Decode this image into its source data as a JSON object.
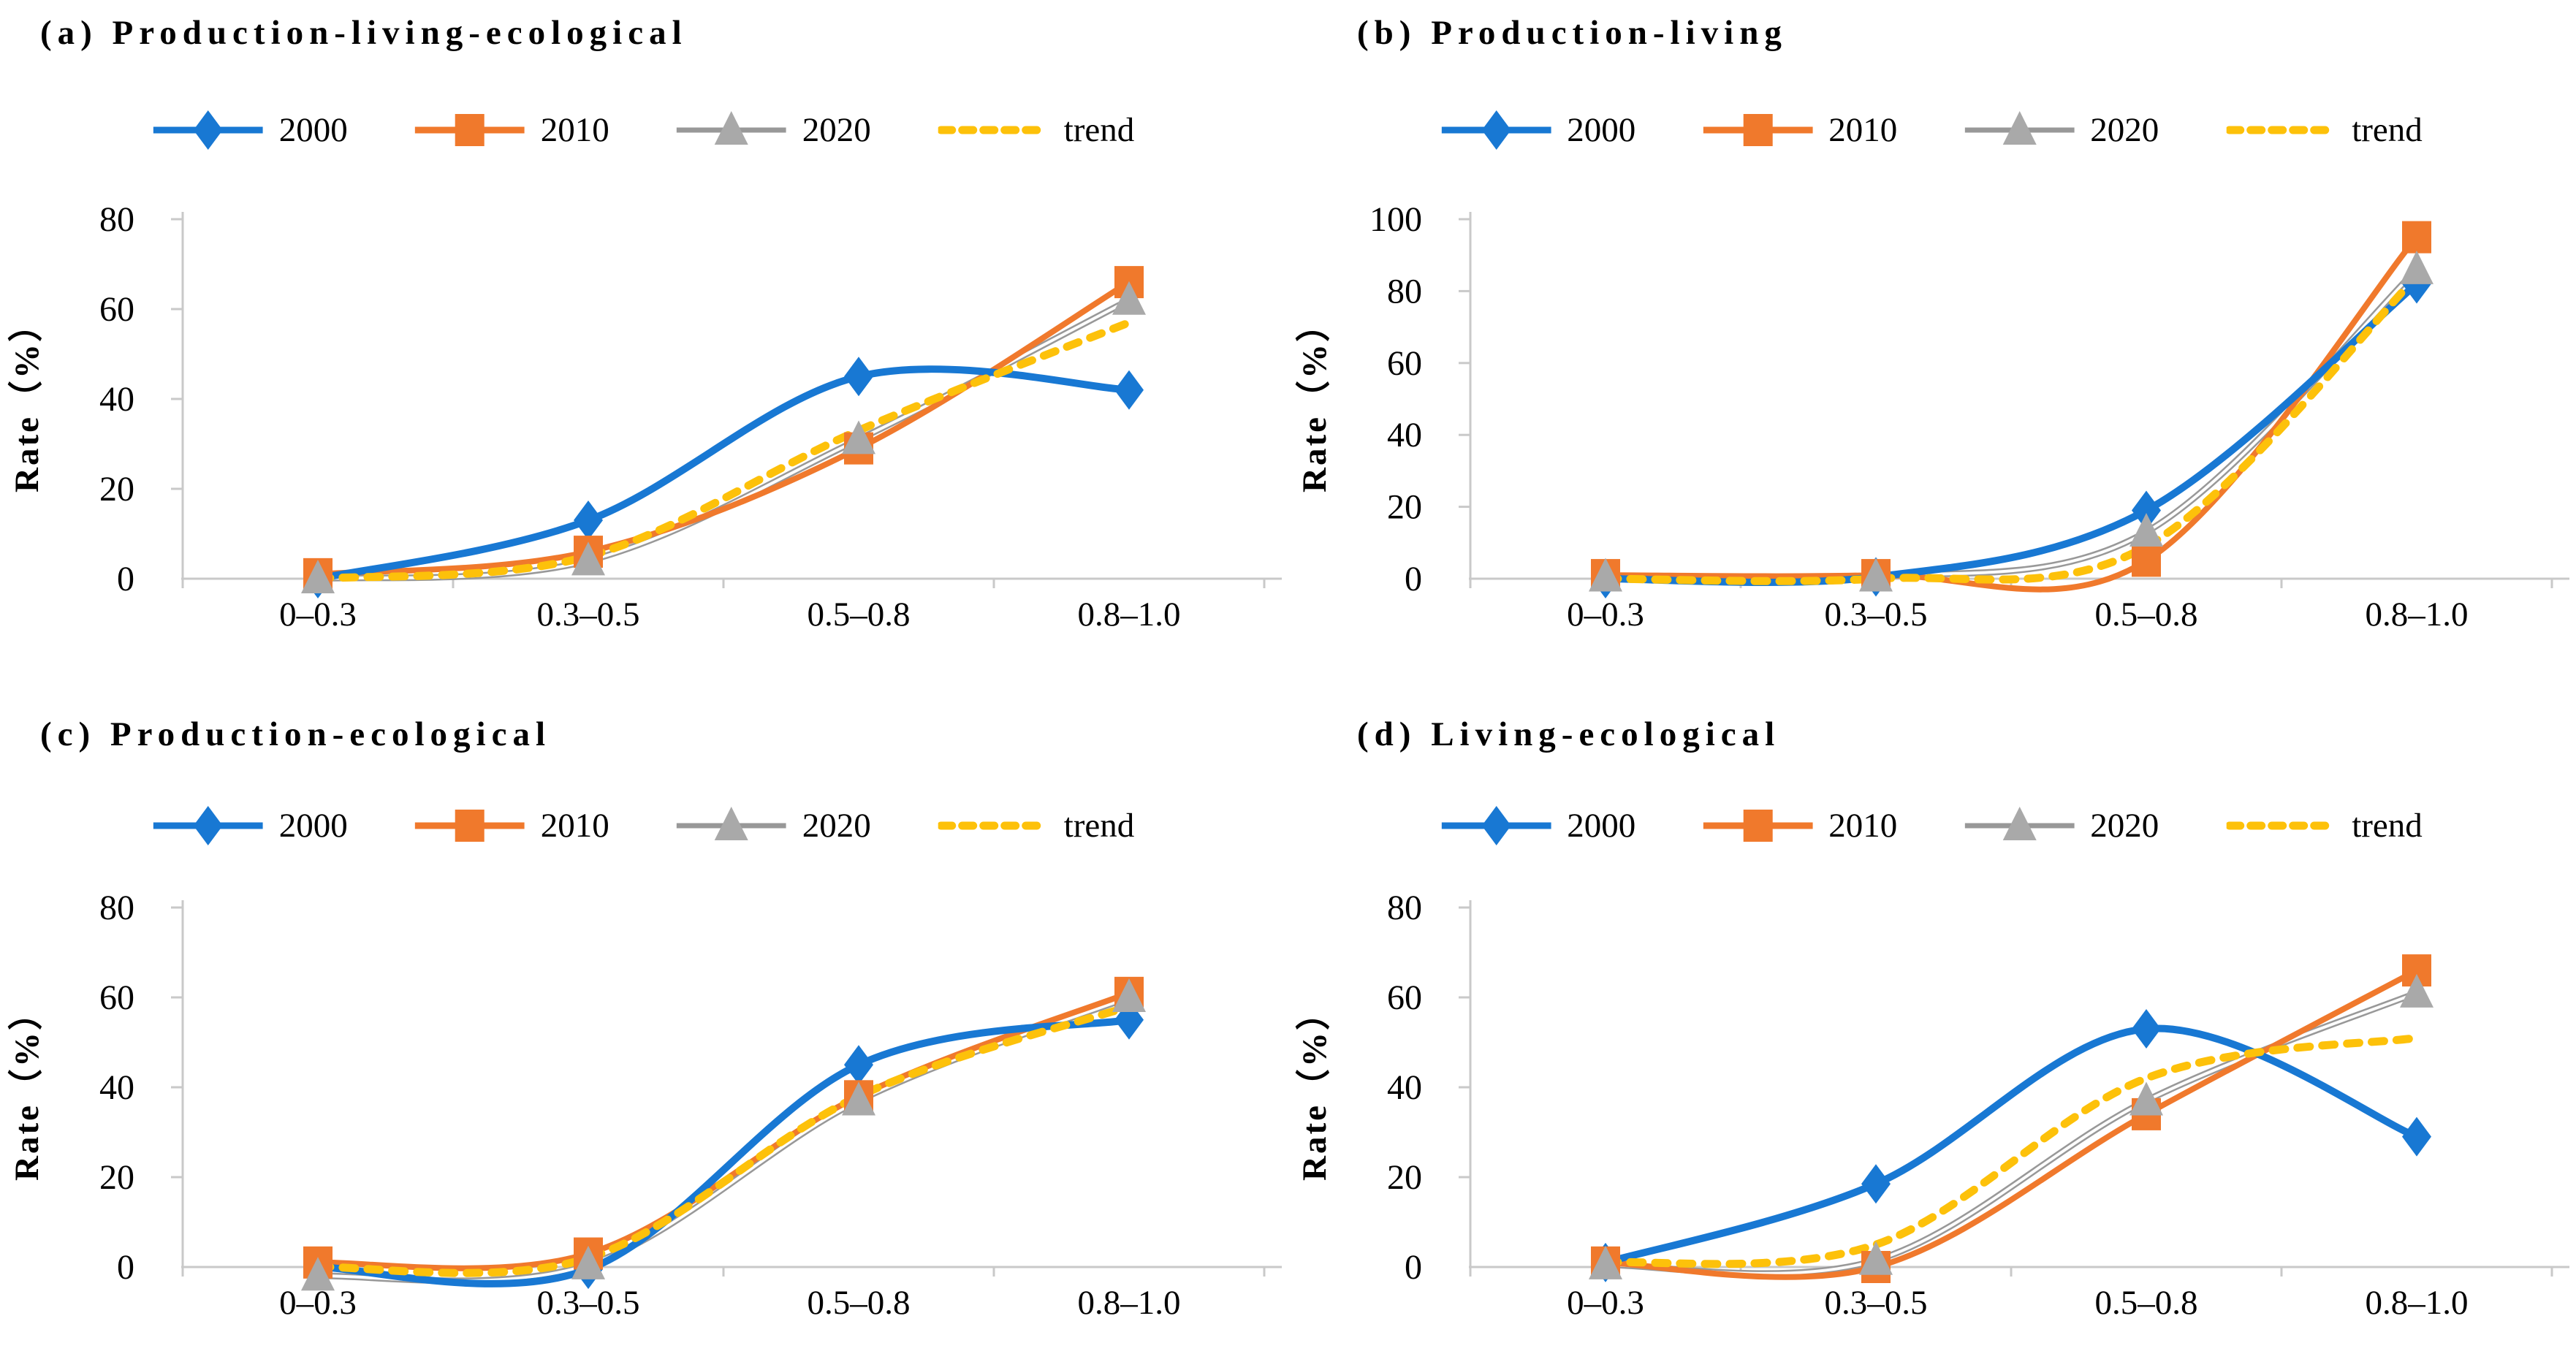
{
  "figure": {
    "background": "#ffffff",
    "axis_color": "#c9c9c9",
    "text_color": "#000000"
  },
  "chart_data": [
    {
      "type": "line",
      "title": "(a) Production-living-ecological",
      "categories": [
        "0–0.3",
        "0.3–0.5",
        "0.5–0.8",
        "0.8–1.0"
      ],
      "xlabel": "",
      "ylabel": "Rate（%）",
      "ylim": [
        0,
        80
      ],
      "ystep": 20,
      "grid": false,
      "legend_position": "top",
      "line_style": "smooth",
      "series": [
        {
          "name": "2000",
          "marker": "diamond",
          "color": "#1878d3",
          "values": [
            0,
            13,
            45,
            42
          ]
        },
        {
          "name": "2010",
          "marker": "square",
          "color": "#f0792c",
          "values": [
            1,
            6,
            29,
            66
          ]
        },
        {
          "name": "2020",
          "marker": "triangle",
          "color": "#989898",
          "marker_color": "#a9a9a9",
          "double_line": true,
          "values": [
            0,
            4,
            31,
            62
          ]
        },
        {
          "name": "trend",
          "marker": null,
          "color": "#fdc10a",
          "dashed": true,
          "values": [
            0,
            5,
            33,
            57
          ]
        }
      ]
    },
    {
      "type": "line",
      "title": "(b) Production-living",
      "categories": [
        "0–0.3",
        "0.3–0.5",
        "0.5–0.8",
        "0.8–1.0"
      ],
      "xlabel": "",
      "ylabel": "Rate（%）",
      "ylim": [
        0,
        100
      ],
      "ystep": 20,
      "grid": false,
      "legend_position": "top",
      "line_style": "smooth",
      "series": [
        {
          "name": "2000",
          "marker": "diamond",
          "color": "#1878d3",
          "values": [
            0,
            0.5,
            19,
            82
          ]
        },
        {
          "name": "2010",
          "marker": "square",
          "color": "#f0792c",
          "values": [
            1,
            1,
            5,
            95
          ]
        },
        {
          "name": "2020",
          "marker": "triangle",
          "color": "#989898",
          "marker_color": "#a9a9a9",
          "double_line": true,
          "values": [
            0.5,
            0.5,
            13,
            86
          ]
        },
        {
          "name": "trend",
          "marker": null,
          "color": "#fdc10a",
          "dashed": true,
          "values": [
            0,
            0,
            9,
            84
          ]
        }
      ]
    },
    {
      "type": "line",
      "title": "(c) Production-ecological",
      "categories": [
        "0–0.3",
        "0.3–0.5",
        "0.5–0.8",
        "0.8–1.0"
      ],
      "xlabel": "",
      "ylabel": "Rate（%）",
      "ylim": [
        0,
        80
      ],
      "ystep": 20,
      "grid": false,
      "legend_position": "top",
      "line_style": "smooth",
      "series": [
        {
          "name": "2000",
          "marker": "diamond",
          "color": "#1878d3",
          "values": [
            0,
            -0.5,
            45,
            55
          ]
        },
        {
          "name": "2010",
          "marker": "square",
          "color": "#f0792c",
          "values": [
            1,
            3,
            38,
            61
          ]
        },
        {
          "name": "2020",
          "marker": "triangle",
          "color": "#989898",
          "marker_color": "#a9a9a9",
          "double_line": true,
          "values": [
            -2,
            0.5,
            37,
            60
          ]
        },
        {
          "name": "trend",
          "marker": null,
          "color": "#fdc10a",
          "dashed": true,
          "values": [
            0,
            2,
            38,
            58
          ]
        }
      ]
    },
    {
      "type": "line",
      "title": "(d) Living-ecological",
      "categories": [
        "0–0.3",
        "0.3–0.5",
        "0.5–0.8",
        "0.8–1.0"
      ],
      "xlabel": "",
      "ylabel": "Rate（%）",
      "ylim": [
        0,
        80
      ],
      "ystep": 20,
      "grid": false,
      "legend_position": "top",
      "line_style": "smooth",
      "series": [
        {
          "name": "2000",
          "marker": "diamond",
          "color": "#1878d3",
          "values": [
            1,
            18.5,
            53,
            29
          ]
        },
        {
          "name": "2010",
          "marker": "square",
          "color": "#f0792c",
          "values": [
            1,
            0,
            34,
            66
          ]
        },
        {
          "name": "2020",
          "marker": "triangle",
          "color": "#989898",
          "marker_color": "#a9a9a9",
          "double_line": true,
          "values": [
            0.5,
            1.5,
            37,
            61
          ]
        },
        {
          "name": "trend",
          "marker": null,
          "color": "#fdc10a",
          "dashed": true,
          "values": [
            1,
            5,
            42,
            51
          ]
        }
      ]
    }
  ]
}
